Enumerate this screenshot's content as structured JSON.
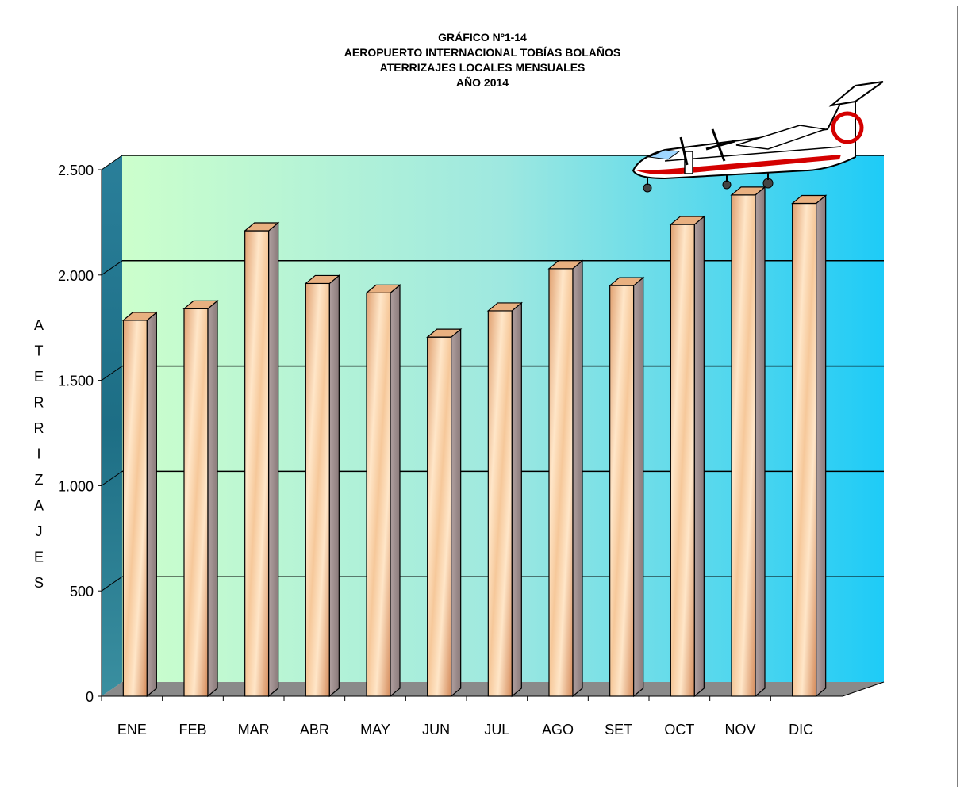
{
  "chart_data": {
    "type": "bar",
    "title": [
      "GRÁFICO Nº1-14",
      "AEROPUERTO INTERNACIONAL TOBÍAS BOLAÑOS",
      "ATERRIZAJES LOCALES MENSUALES",
      "AÑO 2014"
    ],
    "ylabel": "ATERRIZAJES",
    "xlabel": "",
    "categories": [
      "ENE",
      "FEB",
      "MAR",
      "ABR",
      "MAY",
      "JUN",
      "JUL",
      "AGO",
      "SET",
      "OCT",
      "NOV",
      "DIC"
    ],
    "values": [
      1785,
      1840,
      2210,
      1960,
      1915,
      1705,
      1830,
      2030,
      1950,
      2240,
      2380,
      2340
    ],
    "ylim": [
      0,
      2500
    ],
    "yticks": [
      0,
      500,
      1000,
      1500,
      2000,
      2500
    ],
    "ytick_labels": [
      "0",
      "500",
      "1.000",
      "1.500",
      "2.000",
      "2.500"
    ],
    "grid": true,
    "colors": {
      "wall_left": "#ccffcc",
      "wall_right": "#1ecbf7",
      "bar_light": "#ffe6c8",
      "bar_dark": "#d48a5a",
      "floor": "#8a8a8a"
    },
    "decoration_icon": "turboprop-airplane-icon"
  }
}
